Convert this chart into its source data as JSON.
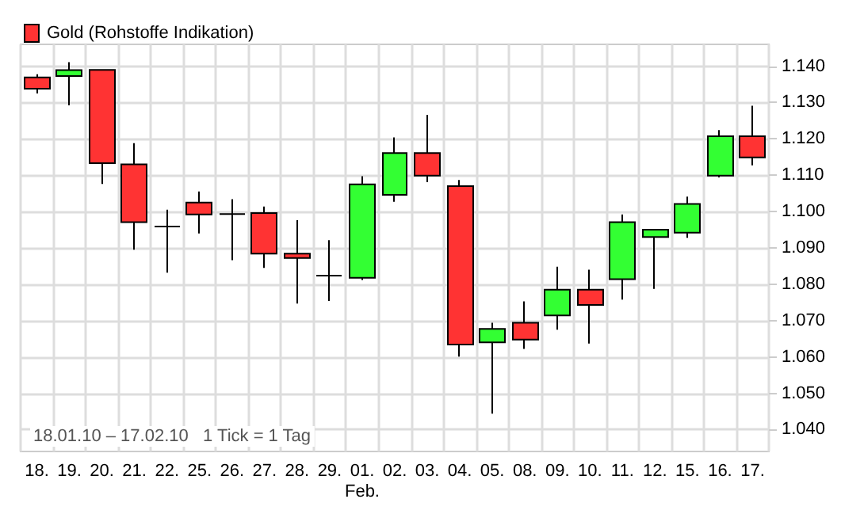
{
  "chart_data": {
    "type": "candlestick",
    "categories": [
      "18.",
      "19.",
      "20.",
      "21.",
      "22.",
      "25.",
      "26.",
      "27.",
      "28.",
      "29.",
      "01.\nFeb.",
      "02.",
      "03.",
      "04.",
      "05.",
      "08.",
      "09.",
      "10.",
      "11.",
      "12.",
      "15.",
      "16.",
      "17."
    ],
    "series": [
      {
        "name": "Gold (Rohstoffe Indikation)",
        "colors": [
          "#ff3333",
          "#33ff33",
          "#ff3333",
          "#ff3333",
          "#000000",
          "#ff3333",
          "#000000",
          "#ff3333",
          "#ff3333",
          "#000000",
          "#33ff33",
          "#33ff33",
          "#ff3333",
          "#ff3333",
          "#33ff33",
          "#ff3333",
          "#33ff33",
          "#ff3333",
          "#33ff33",
          "#33ff33",
          "#33ff33",
          "#33ff33",
          "#ff3333"
        ],
        "ohlc": [
          [
            1.1369,
            1.1378,
            1.1325,
            1.1338
          ],
          [
            1.1373,
            1.1411,
            1.1292,
            1.1389
          ],
          [
            1.139,
            1.139,
            1.1076,
            1.1133
          ],
          [
            1.113,
            1.1188,
            1.0895,
            1.0971
          ],
          [
            1.0959,
            1.1005,
            1.0832,
            1.0959
          ],
          [
            1.1025,
            1.1055,
            1.094,
            1.0992
          ],
          [
            1.0993,
            1.1034,
            1.0866,
            1.0993
          ],
          [
            1.0996,
            1.1014,
            1.0845,
            1.0884
          ],
          [
            1.0884,
            1.0976,
            1.0747,
            1.0872
          ],
          [
            1.0824,
            1.0921,
            1.0754,
            1.0824
          ],
          [
            1.0818,
            1.1097,
            1.0812,
            1.1075
          ],
          [
            1.1046,
            1.1204,
            1.1027,
            1.1161
          ],
          [
            1.1161,
            1.1266,
            1.1081,
            1.1099
          ],
          [
            1.107,
            1.1087,
            1.0601,
            1.0634
          ],
          [
            1.064,
            1.0694,
            1.0444,
            1.0677
          ],
          [
            1.0694,
            1.0753,
            1.0622,
            1.0648
          ],
          [
            1.0714,
            1.0848,
            1.0675,
            1.0785
          ],
          [
            1.0785,
            1.084,
            1.0637,
            1.0743
          ],
          [
            1.0814,
            1.0992,
            1.0758,
            1.0971
          ],
          [
            1.093,
            1.095,
            1.0787,
            1.095
          ],
          [
            1.0942,
            1.1041,
            1.0928,
            1.1021
          ],
          [
            1.1099,
            1.1224,
            1.1094,
            1.1207
          ],
          [
            1.1207,
            1.1291,
            1.1127,
            1.1149
          ]
        ]
      }
    ],
    "ylim": [
      1.034,
      1.146
    ],
    "yticks": [
      {
        "value": 1.04,
        "label": "1.040"
      },
      {
        "value": 1.05,
        "label": "1.050"
      },
      {
        "value": 1.06,
        "label": "1.060"
      },
      {
        "value": 1.07,
        "label": "1.070"
      },
      {
        "value": 1.08,
        "label": "1.080"
      },
      {
        "value": 1.09,
        "label": "1.090"
      },
      {
        "value": 1.1,
        "label": "1.100"
      },
      {
        "value": 1.11,
        "label": "1.110"
      },
      {
        "value": 1.12,
        "label": "1.120"
      },
      {
        "value": 1.13,
        "label": "1.130"
      },
      {
        "value": 1.14,
        "label": "1.140"
      }
    ],
    "annotations": [
      "18.01.10 – 17.02.10   1 Tick = 1 Tag"
    ],
    "grid": true,
    "legend": "top left"
  }
}
